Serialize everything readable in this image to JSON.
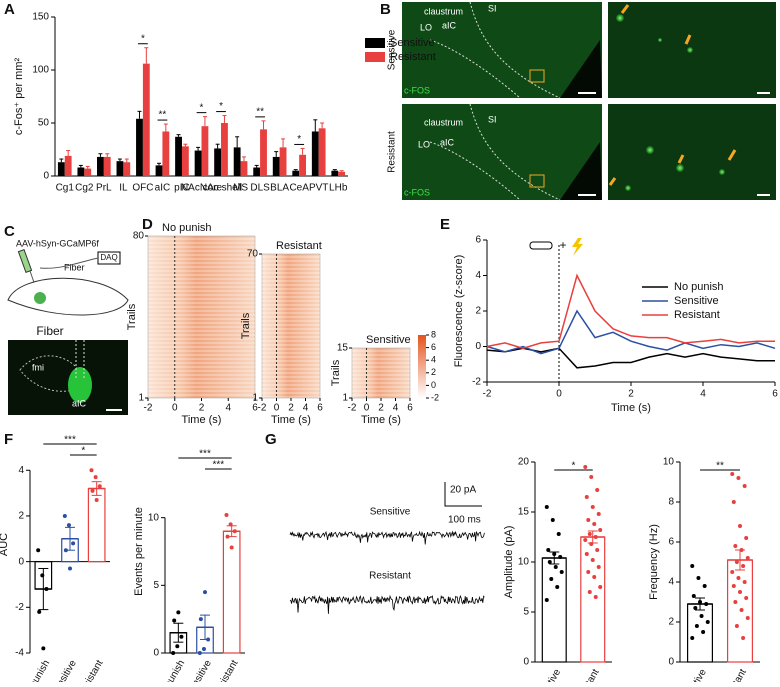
{
  "panels": [
    "A",
    "B",
    "C",
    "D",
    "E",
    "F",
    "G"
  ],
  "panel_b": {
    "groups": [
      "Sensitive",
      "Resistant"
    ],
    "regions": [
      "claustrum",
      "SI",
      "LO",
      "aIC"
    ],
    "stain": "c-FOS"
  },
  "panel_c": {
    "virus": "AAV-hSyn-GCaMP6f",
    "daq": "DAQ",
    "fiber": "Fiber",
    "regions": [
      "fmi",
      "aIC"
    ]
  },
  "panel_g": {
    "traces": [
      "Sensitive",
      "Resistant"
    ],
    "scale_y": "20 pA",
    "scale_x": "100 ms"
  },
  "chart_data": [
    {
      "type": "grouped_bar",
      "ylabel": "c-Fos⁺ per mm²",
      "categories": [
        "Cg1",
        "Cg2",
        "PrL",
        "IL",
        "OFC",
        "aIC",
        "pIC",
        "NAc core",
        "NAc shell",
        "MS",
        "DLS",
        "BLA",
        "CeA",
        "PVT",
        "LHb"
      ],
      "series": [
        {
          "name": "Sensitive",
          "color": "#000000",
          "values": [
            13,
            8,
            18,
            14,
            54,
            10,
            37,
            24,
            26,
            27,
            8,
            18,
            5,
            42,
            5
          ],
          "errors": [
            3,
            2,
            3,
            2,
            7,
            2,
            2,
            3,
            4,
            10,
            2,
            5,
            1,
            11,
            1
          ]
        },
        {
          "name": "Resistant",
          "color": "#e8403f",
          "values": [
            19,
            7,
            18,
            13,
            106,
            42,
            28,
            47,
            50,
            14,
            44,
            27,
            20,
            45,
            4
          ],
          "errors": [
            5,
            2,
            3,
            3,
            15,
            7,
            2,
            9,
            7,
            4,
            8,
            8,
            6,
            5,
            1
          ]
        }
      ],
      "significance": [
        null,
        null,
        null,
        null,
        "*",
        "**",
        null,
        "*",
        "*",
        null,
        "**",
        null,
        "*",
        null,
        null
      ],
      "ylim": [
        0,
        150
      ],
      "yticks": [
        0,
        50,
        100,
        150
      ]
    },
    {
      "type": "line",
      "xlabel": "Time (s)",
      "ylabel": "Fluorescence (z-score)",
      "annotation": "+",
      "x": [
        -2,
        -1.5,
        -1,
        -0.5,
        0,
        0.5,
        1,
        1.5,
        2,
        2.5,
        3,
        3.5,
        4,
        4.5,
        5,
        5.5,
        6
      ],
      "series": [
        {
          "name": "No punish",
          "color": "#000000",
          "values": [
            -0.2,
            -0.3,
            -0.1,
            -0.3,
            -0.1,
            -1.2,
            -1.1,
            -0.9,
            -0.9,
            -0.6,
            -0.4,
            -0.6,
            -0.4,
            -0.6,
            -0.7,
            -0.8,
            -0.8
          ]
        },
        {
          "name": "Sensitive",
          "color": "#2c4fa3",
          "values": [
            0,
            -0.3,
            0,
            -0.4,
            -0.1,
            2.0,
            0.5,
            0.8,
            0.3,
            0,
            -0.2,
            0.2,
            -0.1,
            0.1,
            0,
            0.2,
            -0.1
          ]
        },
        {
          "name": "Resistant",
          "color": "#e8403f",
          "values": [
            0,
            0.2,
            -0.1,
            0.2,
            0.3,
            4.0,
            2.0,
            1.0,
            0.6,
            0.5,
            0.5,
            0.2,
            0.3,
            0.4,
            0.2,
            0.3,
            0.3
          ]
        }
      ],
      "xlim": [
        -2,
        6
      ],
      "xticks": [
        -2,
        0,
        2,
        4,
        6
      ],
      "ylim": [
        -2,
        6
      ],
      "yticks": [
        -2,
        0,
        2,
        4,
        6
      ]
    },
    {
      "type": "dot_bar",
      "ylabel": "AUC",
      "categories": [
        "No punish",
        "Sensitive",
        "Resistant"
      ],
      "colors": [
        "#000000",
        "#2c4fa3",
        "#e8403f"
      ],
      "values": [
        -1.2,
        1.0,
        3.2
      ],
      "errors": [
        0.9,
        0.5,
        0.3
      ],
      "points": [
        [
          0.5,
          -0.6,
          -1.2,
          -2.2,
          -3.8
        ],
        [
          2.0,
          1.6,
          0.8,
          0.5,
          -0.3
        ],
        [
          4.0,
          3.7,
          3.3,
          3.1,
          2.7
        ]
      ],
      "significance": [
        "***",
        "*"
      ],
      "ylim": [
        -4,
        5.5
      ],
      "yticks": [
        -4,
        -2,
        0,
        2,
        4
      ]
    },
    {
      "type": "dot_bar",
      "ylabel": "Events per minute",
      "categories": [
        "No punish",
        "Sensitive",
        "Resistant"
      ],
      "colors": [
        "#000000",
        "#2c4fa3",
        "#e8403f"
      ],
      "values": [
        1.5,
        1.9,
        9.0
      ],
      "errors": [
        0.7,
        0.9,
        0.4
      ],
      "points": [
        [
          0,
          0.5,
          1.2,
          2.4,
          3.0
        ],
        [
          0,
          0.3,
          1.0,
          2.5,
          4.5
        ],
        [
          10.2,
          9.5,
          9.0,
          8.6,
          7.8
        ]
      ],
      "significance": [
        "***",
        "***"
      ],
      "ylim": [
        0,
        15
      ],
      "yticks": [
        0,
        5,
        10
      ]
    },
    {
      "type": "dot_bar",
      "ylabel": "Amplitude (pA)",
      "categories": [
        "Sensitive",
        "Resistant"
      ],
      "colors": [
        "#000000",
        "#e8403f"
      ],
      "values": [
        10.4,
        12.5
      ],
      "errors": [
        0.6,
        0.6
      ],
      "points": [
        [
          15.5,
          14.2,
          12.8,
          11.2,
          10.8,
          10.5,
          10.0,
          9.5,
          9.0,
          8.3,
          7.5,
          6.2
        ],
        [
          19.5,
          18.5,
          17.2,
          16.5,
          15.5,
          14.8,
          14.2,
          13.8,
          13.2,
          12.8,
          12.5,
          12.2,
          11.8,
          11.2,
          10.8,
          10.2,
          9.5,
          9.0,
          8.5,
          7.5,
          7.0,
          6.5
        ]
      ],
      "significance": [
        "*"
      ],
      "ylim": [
        0,
        20
      ],
      "yticks": [
        0,
        5,
        10,
        15,
        20
      ]
    },
    {
      "type": "dot_bar",
      "ylabel": "Frequency (Hz)",
      "categories": [
        "Sensitive",
        "Resistant"
      ],
      "colors": [
        "#000000",
        "#e8403f"
      ],
      "values": [
        2.9,
        5.1
      ],
      "errors": [
        0.3,
        0.5
      ],
      "points": [
        [
          4.8,
          4.2,
          3.8,
          3.3,
          3.0,
          2.9,
          2.7,
          2.3,
          2.0,
          1.8,
          1.5,
          1.2
        ],
        [
          9.4,
          9.2,
          8.8,
          8.0,
          6.8,
          6.2,
          5.8,
          5.6,
          5.2,
          5.0,
          4.8,
          4.5,
          4.2,
          4.0,
          3.8,
          3.5,
          3.2,
          3.0,
          2.6,
          2.2,
          1.8,
          1.2
        ]
      ],
      "significance": [
        "**"
      ],
      "ylim": [
        0,
        10
      ],
      "yticks": [
        0,
        2,
        4,
        6,
        8,
        10
      ]
    },
    {
      "type": "heatmap",
      "title": "No punish",
      "xlabel": "Time (s)",
      "ylabel": "Trails",
      "xlim": [
        -2,
        6
      ],
      "xticks": [
        -2,
        0,
        2,
        4,
        6
      ],
      "ylim": [
        1,
        80
      ],
      "yticks": [
        1,
        80
      ]
    },
    {
      "type": "heatmap",
      "title": "Resistant",
      "xlabel": "Time (s)",
      "ylabel": "Trails",
      "xlim": [
        -2,
        6
      ],
      "xticks": [
        -2,
        0,
        2,
        4,
        6
      ],
      "ylim": [
        1,
        70
      ],
      "yticks": [
        1,
        70
      ]
    },
    {
      "type": "heatmap",
      "title": "Sensitive",
      "xlabel": "Time (s)",
      "ylabel": "Trails",
      "xlim": [
        -2,
        6
      ],
      "xticks": [
        -2,
        0,
        2,
        4,
        6
      ],
      "ylim": [
        1,
        15
      ],
      "yticks": [
        1,
        15
      ],
      "colorbar_lim": [
        -2,
        8
      ],
      "colorbar_ticks": [
        8,
        6,
        4,
        2,
        0,
        -2
      ]
    }
  ]
}
